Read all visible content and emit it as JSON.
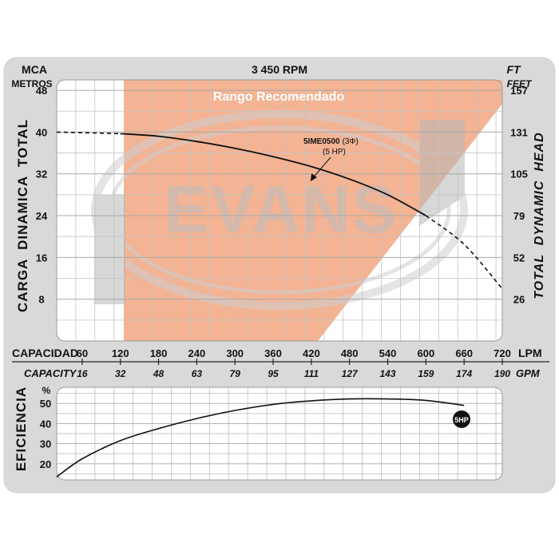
{
  "chart_data": [
    {
      "type": "line",
      "title": "3 450 RPM",
      "recommended_range_label": "Rango Recomendado",
      "recommended_range_lpm": [
        120,
        420
      ],
      "watermark": "EVANS",
      "left_units": {
        "top": "MCA",
        "bottom": "METROS"
      },
      "right_units": {
        "top": "FT",
        "bottom": "FEET"
      },
      "ylabel": "CARGA  DINAMICA  TOTAL",
      "ylabel_right": "TOTAL  DYNAMIC  HEAD",
      "ylim": [
        0,
        50
      ],
      "xlim": [
        20,
        720
      ],
      "yticks": [
        "48",
        "40",
        "32",
        "24",
        "16",
        "8"
      ],
      "yticks_values": [
        48,
        40,
        32,
        24,
        16,
        8
      ],
      "yticks_right": [
        "157",
        "131",
        "105",
        "79",
        "52",
        "26"
      ],
      "xlabel": "CAPACIDAD",
      "xlabel_unit": "LPM",
      "xlabel2": "CAPACITY",
      "xlabel2_unit": "GPM",
      "xticks": [
        "60",
        "120",
        "180",
        "240",
        "300",
        "360",
        "420",
        "480",
        "540",
        "600",
        "660",
        "720"
      ],
      "xticks_values": [
        60,
        120,
        180,
        240,
        300,
        360,
        420,
        480,
        540,
        600,
        660,
        720
      ],
      "xticks_gpm": [
        "16",
        "32",
        "48",
        "63",
        "79",
        "95",
        "111",
        "127",
        "143",
        "159",
        "174",
        "190"
      ],
      "series": [
        {
          "name": "5IME0500",
          "annotation": {
            "model": "5IME0500",
            "phase": "(3Φ)",
            "power": "(5 HP)"
          },
          "x": [
            20,
            120,
            180,
            240,
            300,
            360,
            420,
            480,
            540,
            600,
            660,
            720
          ],
          "y": [
            40,
            39.7,
            39.2,
            38.2,
            36.9,
            35.3,
            33.4,
            31.0,
            28.0,
            24.0,
            18.5,
            10.0
          ]
        }
      ]
    },
    {
      "type": "line",
      "ylabel": "EFICIENCIA",
      "yunit": "%",
      "ylim": [
        12,
        58
      ],
      "yticks": [
        "50",
        "40",
        "30",
        "20"
      ],
      "yticks_values": [
        50,
        40,
        30,
        20
      ],
      "series": [
        {
          "name": "5HP",
          "x": [
            20,
            60,
            120,
            180,
            240,
            300,
            360,
            420,
            480,
            540,
            600,
            660
          ],
          "y": [
            13.5,
            22.5,
            31.5,
            37.5,
            42.5,
            46.5,
            49.5,
            51.3,
            52.2,
            52.2,
            51.5,
            49.0
          ]
        }
      ]
    }
  ]
}
